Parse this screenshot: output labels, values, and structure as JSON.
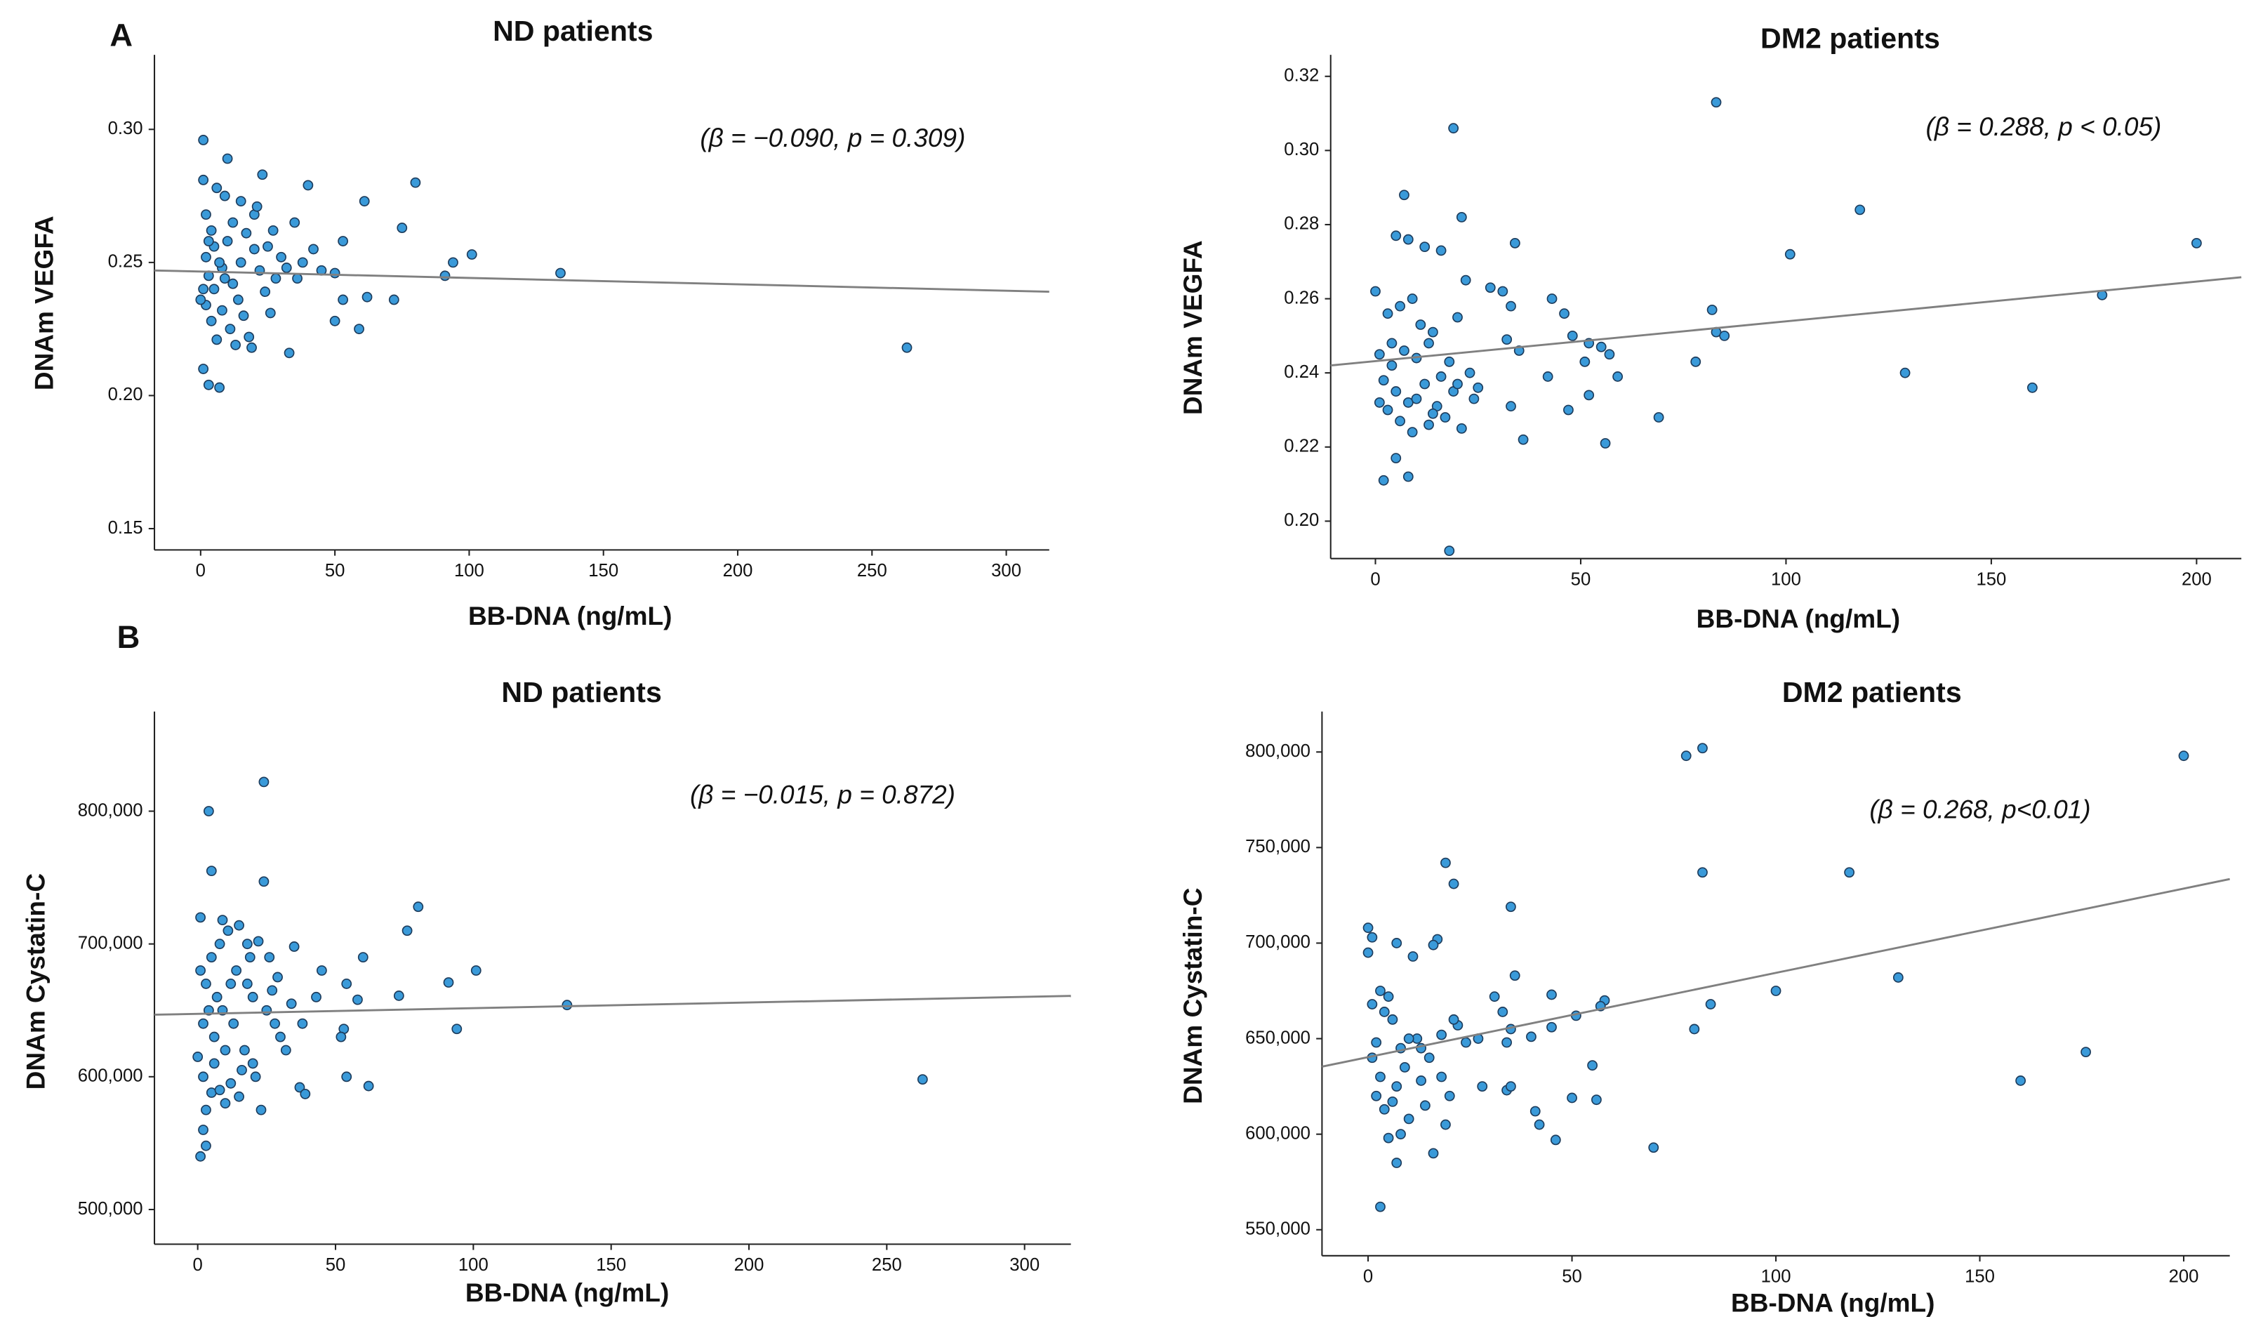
{
  "chart_data": [
    {
      "type": "scatter",
      "panel_label": "A",
      "title": "ND patients",
      "annotation": "(β = −0.090, p = 0.309)",
      "xlabel": "BB-DNA (ng/mL)",
      "ylabel": "DNAm VEGFA",
      "color": "#3a9ad9",
      "fit_color": "#808080",
      "xlim": [
        -17.2,
        316
      ],
      "ylim": [
        0.142,
        0.328
      ],
      "xticks": [
        0,
        50,
        100,
        150,
        200,
        250,
        300
      ],
      "yticks": [
        {
          "value": 0.15,
          "label": "0.15"
        },
        {
          "value": 0.2,
          "label": "0.20"
        },
        0.25,
        {
          "value": 0.3,
          "label": "0.30"
        }
      ],
      "x": [
        1,
        1,
        10,
        23,
        40,
        80,
        61,
        75,
        53,
        101,
        94,
        91,
        134,
        72,
        62,
        53,
        59,
        50,
        33,
        263,
        1,
        3,
        7,
        6,
        9,
        15,
        20,
        27,
        35,
        45,
        50,
        30,
        25,
        38,
        2,
        4,
        5,
        2,
        3,
        1,
        2,
        4,
        6,
        8,
        10,
        12,
        14,
        16,
        18,
        20,
        22,
        24,
        26,
        28,
        12,
        17,
        8,
        11,
        13,
        19,
        21,
        5,
        7,
        9,
        3,
        32,
        36,
        42,
        15,
        0
      ],
      "values": [
        0.296,
        0.281,
        0.289,
        0.283,
        0.279,
        0.28,
        0.273,
        0.263,
        0.258,
        0.253,
        0.25,
        0.245,
        0.246,
        0.236,
        0.237,
        0.236,
        0.225,
        0.228,
        0.216,
        0.218,
        0.21,
        0.204,
        0.203,
        0.278,
        0.275,
        0.273,
        0.268,
        0.262,
        0.265,
        0.247,
        0.246,
        0.252,
        0.256,
        0.25,
        0.268,
        0.262,
        0.256,
        0.252,
        0.245,
        0.24,
        0.234,
        0.228,
        0.221,
        0.248,
        0.258,
        0.242,
        0.236,
        0.23,
        0.222,
        0.255,
        0.247,
        0.239,
        0.231,
        0.244,
        0.265,
        0.261,
        0.232,
        0.225,
        0.219,
        0.218,
        0.271,
        0.24,
        0.25,
        0.244,
        0.258,
        0.248,
        0.244,
        0.255,
        0.25,
        0.236
      ],
      "fit": {
        "x": [
          -17.2,
          316
        ],
        "values": [
          0.247,
          0.239
        ]
      }
    },
    {
      "type": "scatter",
      "title": "DM2 patients",
      "annotation": "(β = 0.288, p < 0.05)",
      "xlabel": "BB-DNA (ng/mL)",
      "ylabel": "DNAm VEGFA",
      "color": "#3a9ad9",
      "fit_color": "#808080",
      "xlim": [
        -10.9,
        210.9
      ],
      "ylim": [
        0.1899,
        0.3258
      ],
      "xticks": [
        0,
        50,
        100,
        150,
        200
      ],
      "yticks": [
        {
          "value": 0.2,
          "label": "0.20"
        },
        0.22,
        0.24,
        0.26,
        0.28,
        {
          "value": 0.3,
          "label": "0.30"
        },
        0.32
      ],
      "x": [
        83,
        19,
        118,
        200,
        101,
        7,
        21,
        34,
        5,
        8,
        12,
        16,
        0,
        3,
        6,
        9,
        11,
        14,
        20,
        22,
        28,
        31,
        33,
        43,
        46,
        82,
        83,
        85,
        177,
        48,
        52,
        55,
        57,
        1,
        4,
        7,
        10,
        13,
        18,
        23,
        32,
        35,
        42,
        51,
        59,
        78,
        129,
        160,
        2,
        5,
        8,
        12,
        15,
        19,
        24,
        33,
        47,
        52,
        69,
        3,
        6,
        9,
        13,
        17,
        21,
        36,
        56,
        5,
        2,
        8,
        18,
        1,
        4,
        10,
        14,
        16,
        25,
        20
      ],
      "values": [
        0.313,
        0.306,
        0.284,
        0.275,
        0.272,
        0.288,
        0.282,
        0.275,
        0.277,
        0.276,
        0.274,
        0.273,
        0.262,
        0.256,
        0.258,
        0.26,
        0.253,
        0.251,
        0.255,
        0.265,
        0.263,
        0.262,
        0.258,
        0.26,
        0.256,
        0.257,
        0.251,
        0.25,
        0.261,
        0.25,
        0.248,
        0.247,
        0.245,
        0.245,
        0.242,
        0.246,
        0.244,
        0.248,
        0.243,
        0.24,
        0.249,
        0.246,
        0.239,
        0.243,
        0.239,
        0.243,
        0.24,
        0.236,
        0.238,
        0.235,
        0.232,
        0.237,
        0.231,
        0.235,
        0.233,
        0.231,
        0.23,
        0.234,
        0.228,
        0.23,
        0.227,
        0.224,
        0.226,
        0.228,
        0.225,
        0.222,
        0.221,
        0.217,
        0.211,
        0.212,
        0.192,
        0.232,
        0.248,
        0.233,
        0.229,
        0.239,
        0.236,
        0.237
      ],
      "fit": {
        "x": [
          -10.9,
          210.9
        ],
        "values": [
          0.242,
          0.2658
        ]
      }
    },
    {
      "type": "scatter",
      "panel_label": "B",
      "title": "ND patients",
      "annotation": "(β = −0.015, p = 0.872)",
      "xlabel": "BB-DNA (ng/mL)",
      "ylabel": "DNAm Cystatin-C",
      "color": "#3a9ad9",
      "fit_color": "#808080",
      "xlim": [
        -15.7,
        316.8
      ],
      "ylim": [
        473900,
        875000
      ],
      "xticks": [
        0,
        50,
        100,
        150,
        200,
        250,
        300
      ],
      "yticks": [
        {
          "value": 500000,
          "label": "500,000"
        },
        {
          "value": 600000,
          "label": "600,000"
        },
        {
          "value": 700000,
          "label": "700,000"
        },
        {
          "value": 800000,
          "label": "800,000"
        }
      ],
      "x": [
        24,
        4,
        5,
        24,
        80,
        76,
        1,
        9,
        15,
        22,
        35,
        45,
        60,
        101,
        91,
        54,
        73,
        58,
        134,
        53,
        94,
        52,
        54,
        62,
        37,
        39,
        263,
        23,
        3,
        2,
        1,
        3,
        5,
        8,
        12,
        16,
        20,
        10,
        6,
        2,
        4,
        7,
        3,
        1,
        5,
        8,
        11,
        14,
        18,
        20,
        25,
        28,
        30,
        32,
        26,
        18,
        13,
        9,
        6,
        10,
        15,
        17,
        21,
        27,
        34,
        38,
        43,
        29,
        19,
        12,
        2,
        0
      ],
      "values": [
        822000,
        800000,
        755000,
        747000,
        728000,
        710000,
        720000,
        718000,
        714000,
        702000,
        698000,
        680000,
        690000,
        680000,
        671000,
        670000,
        661000,
        658000,
        654000,
        636000,
        636000,
        630000,
        600000,
        593000,
        592000,
        587000,
        598000,
        575000,
        575000,
        560000,
        540000,
        548000,
        588000,
        590000,
        595000,
        605000,
        610000,
        620000,
        630000,
        640000,
        650000,
        660000,
        670000,
        680000,
        690000,
        700000,
        710000,
        680000,
        670000,
        660000,
        650000,
        640000,
        630000,
        620000,
        690000,
        700000,
        640000,
        650000,
        610000,
        580000,
        585000,
        620000,
        600000,
        665000,
        655000,
        640000,
        660000,
        675000,
        690000,
        670000,
        600000,
        615000
      ],
      "fit": {
        "x": [
          -15.7,
          316.8
        ],
        "values": [
          646700,
          660900
        ]
      }
    },
    {
      "type": "scatter",
      "title": "DM2 patients",
      "annotation": "(β = 0.268, p<0.01)",
      "xlabel": "BB-DNA (ng/mL)",
      "ylabel": "DNAm Cystatin-C",
      "color": "#3a9ad9",
      "fit_color": "#808080",
      "xlim": [
        -11.3,
        211.3
      ],
      "ylim": [
        536400,
        821150
      ],
      "xticks": [
        0,
        50,
        100,
        150,
        200
      ],
      "yticks": [
        {
          "value": 550000,
          "label": "550,000"
        },
        {
          "value": 600000,
          "label": "600,000"
        },
        {
          "value": 650000,
          "label": "650,000"
        },
        {
          "value": 700000,
          "label": "700,000"
        },
        {
          "value": 750000,
          "label": "750,000"
        },
        {
          "value": 800000,
          "label": "800,000"
        }
      ],
      "x": [
        82,
        78,
        200,
        118,
        82,
        19,
        21,
        35,
        0,
        1,
        0,
        7,
        17,
        16,
        11,
        130,
        100,
        36,
        3,
        5,
        1,
        4,
        6,
        84,
        58,
        57,
        45,
        31,
        33,
        51,
        80,
        35,
        45,
        55,
        2,
        8,
        12,
        15,
        18,
        22,
        27,
        34,
        40,
        9,
        3,
        7,
        13,
        18,
        28,
        34,
        35,
        20,
        14,
        6,
        10,
        4,
        2,
        5,
        8,
        16,
        19,
        41,
        42,
        46,
        50,
        56,
        70,
        160,
        176,
        3,
        7,
        1,
        10,
        13,
        21,
        24
      ],
      "values": [
        802000,
        798000,
        798000,
        737000,
        737000,
        742000,
        731000,
        719000,
        708000,
        703000,
        695000,
        700000,
        702000,
        699000,
        693000,
        682000,
        675000,
        683000,
        675000,
        672000,
        668000,
        664000,
        660000,
        668000,
        670000,
        667000,
        673000,
        672000,
        664000,
        662000,
        655000,
        655000,
        656000,
        636000,
        648000,
        645000,
        650000,
        640000,
        652000,
        657000,
        650000,
        648000,
        651000,
        635000,
        630000,
        625000,
        628000,
        630000,
        625000,
        623000,
        625000,
        620000,
        615000,
        617000,
        608000,
        613000,
        620000,
        598000,
        600000,
        590000,
        605000,
        612000,
        605000,
        597000,
        619000,
        618000,
        593000,
        628000,
        643000,
        562000,
        585000,
        640000,
        650000,
        645000,
        660000,
        648000
      ],
      "fit": {
        "x": [
          -11.3,
          211.3
        ],
        "values": [
          635350,
          733500
        ]
      }
    }
  ]
}
